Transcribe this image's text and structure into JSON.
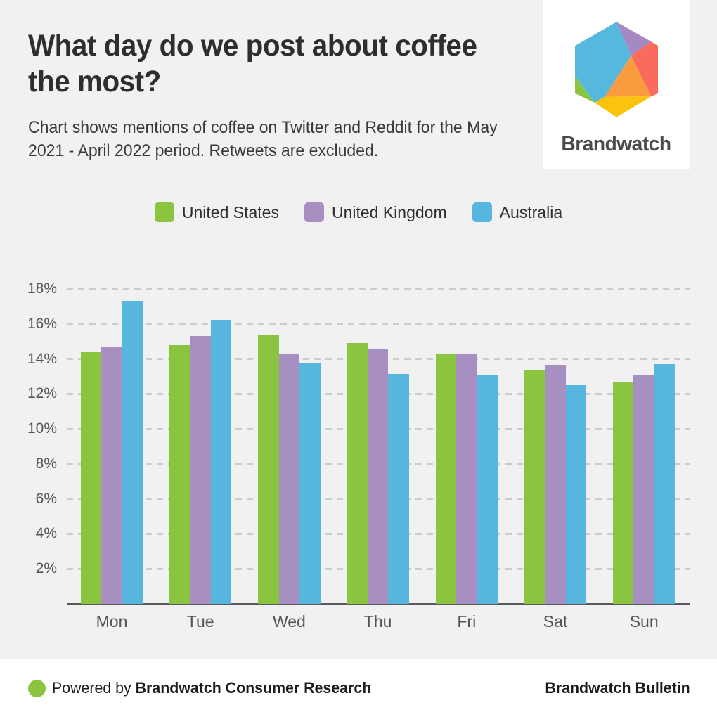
{
  "header": {
    "title_lines": [
      "What day do we post about coffee",
      "the most?"
    ],
    "subtitle_lines": [
      "Chart shows mentions of coffee on Twitter and Reddit for the May",
      "2021 - April 2022 period. Retweets are excluded."
    ]
  },
  "brand_card": {
    "name": "Brandwatch",
    "logo_colors": [
      "#55b8dc",
      "#a589c2",
      "#f96b5d",
      "#f99b3e",
      "#fbc20e",
      "#8cc640"
    ]
  },
  "chart_data": {
    "type": "bar",
    "categories": [
      "Mon",
      "Tue",
      "Wed",
      "Thu",
      "Fri",
      "Sat",
      "Sun"
    ],
    "series": [
      {
        "name": "United States",
        "color": "#8bc43f",
        "values": [
          14.4,
          14.8,
          15.35,
          14.9,
          14.3,
          13.35,
          12.65
        ]
      },
      {
        "name": "United Kingdom",
        "color": "#a88fc1",
        "values": [
          14.65,
          15.3,
          14.3,
          14.55,
          14.25,
          13.65,
          13.05
        ]
      },
      {
        "name": "Australia",
        "color": "#56b6de",
        "values": [
          17.3,
          16.25,
          13.75,
          13.15,
          13.05,
          12.55,
          13.7
        ]
      }
    ],
    "ylim": [
      0,
      18
    ],
    "ytick_values": [
      2,
      4,
      6,
      8,
      10,
      12,
      14,
      16,
      18
    ],
    "ytick_labels": [
      "2%",
      "4%",
      "6%",
      "8%",
      "10%",
      "12%",
      "14%",
      "16%",
      "18%"
    ],
    "yunit": "percent",
    "grid": true,
    "legend_position": "top-center"
  },
  "footer": {
    "powered_prefix": "Powered by ",
    "powered_bold": "Brandwatch Consumer Research",
    "right_text": "Brandwatch Bulletin"
  },
  "colors": {
    "background": "#f1f1f2",
    "footer_background": "#ffffff",
    "accent_green": "#8bc43f",
    "axis": "#58595b",
    "grid": "#cbcccd",
    "text_dark": "#2e2e30",
    "text_gray": "#545456"
  }
}
